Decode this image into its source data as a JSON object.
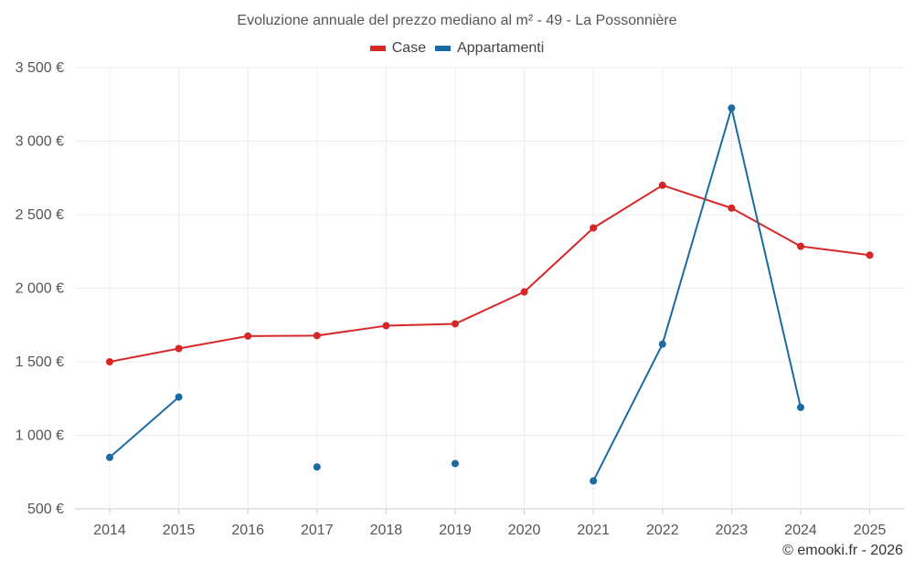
{
  "chart_data": {
    "type": "line",
    "title": "Evoluzione annuale del prezzo mediano al m² - 49 - La Possonnière",
    "xlabel": "",
    "ylabel": "",
    "categories": [
      "2014",
      "2015",
      "2016",
      "2017",
      "2018",
      "2019",
      "2020",
      "2021",
      "2022",
      "2023",
      "2024",
      "2025"
    ],
    "ylim": [
      500,
      3500
    ],
    "yticks": [
      500,
      1000,
      1500,
      2000,
      2500,
      3000,
      3500
    ],
    "ytick_labels": [
      "500 €",
      "1 000 €",
      "1 500 €",
      "2 000 €",
      "2 500 €",
      "3 000 €",
      "3 500 €"
    ],
    "grid": true,
    "legend_position": "top-center",
    "series": [
      {
        "name": "Case",
        "color": "#d62728",
        "values": [
          1500,
          1590,
          1675,
          1678,
          1745,
          1758,
          1975,
          2410,
          2700,
          2545,
          2285,
          2225
        ]
      },
      {
        "name": "Appartamenti",
        "color": "#1a6aa3",
        "values": [
          850,
          1260,
          null,
          785,
          null,
          808,
          null,
          690,
          1620,
          3225,
          1190,
          null
        ]
      }
    ]
  },
  "credit": "© emooki.fr - 2026"
}
